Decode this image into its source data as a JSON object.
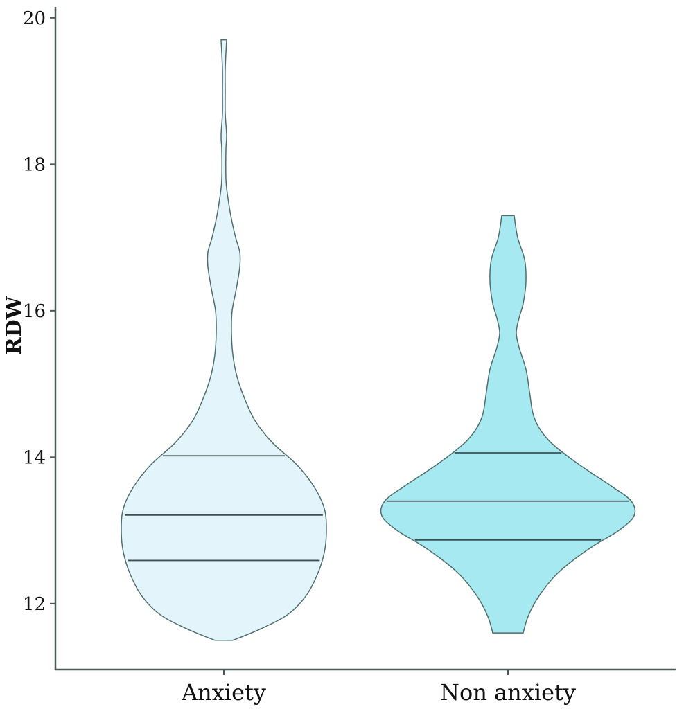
{
  "chart_data": {
    "type": "violin",
    "ylabel": "RDW",
    "xlabel": "",
    "ylim": [
      11.1,
      20.15
    ],
    "yticks": [
      12,
      14,
      16,
      18,
      20
    ],
    "grid": false,
    "categories": [
      "Anxiety",
      "Non anxiety"
    ],
    "series": [
      {
        "category": "Anxiety",
        "fill": "#e3f5fb",
        "min": 11.5,
        "max": 19.7,
        "q1": 12.59,
        "median": 13.21,
        "q3": 14.02,
        "density": [
          [
            11.5,
            13
          ],
          [
            11.65,
            52
          ],
          [
            11.85,
            92
          ],
          [
            12.1,
            118
          ],
          [
            12.4,
            135
          ],
          [
            12.7,
            145
          ],
          [
            13.0,
            148
          ],
          [
            13.3,
            145
          ],
          [
            13.6,
            130
          ],
          [
            13.9,
            105
          ],
          [
            14.2,
            70
          ],
          [
            14.5,
            45
          ],
          [
            14.8,
            30
          ],
          [
            15.1,
            19
          ],
          [
            15.4,
            13
          ],
          [
            15.7,
            11
          ],
          [
            16.0,
            12
          ],
          [
            16.3,
            18
          ],
          [
            16.6,
            23
          ],
          [
            16.8,
            23
          ],
          [
            17.0,
            17
          ],
          [
            17.3,
            10
          ],
          [
            17.6,
            5
          ],
          [
            17.8,
            3
          ],
          [
            18.2,
            3
          ],
          [
            18.4,
            4
          ],
          [
            18.7,
            2
          ],
          [
            19.0,
            2
          ],
          [
            19.3,
            2
          ],
          [
            19.7,
            4
          ]
        ]
      },
      {
        "category": "Non anxiety",
        "fill": "#a6e9f1",
        "min": 11.6,
        "max": 17.3,
        "q1": 12.87,
        "median": 13.4,
        "q3": 14.06,
        "density": [
          [
            11.6,
            22
          ],
          [
            11.8,
            28
          ],
          [
            12.0,
            38
          ],
          [
            12.2,
            52
          ],
          [
            12.4,
            70
          ],
          [
            12.6,
            95
          ],
          [
            12.8,
            125
          ],
          [
            13.0,
            160
          ],
          [
            13.2,
            182
          ],
          [
            13.4,
            178
          ],
          [
            13.6,
            150
          ],
          [
            13.8,
            118
          ],
          [
            14.0,
            88
          ],
          [
            14.2,
            62
          ],
          [
            14.4,
            45
          ],
          [
            14.6,
            36
          ],
          [
            14.9,
            31
          ],
          [
            15.2,
            26
          ],
          [
            15.5,
            16
          ],
          [
            15.7,
            12
          ],
          [
            15.9,
            16
          ],
          [
            16.1,
            22
          ],
          [
            16.4,
            26
          ],
          [
            16.7,
            24
          ],
          [
            17.0,
            14
          ],
          [
            17.3,
            9
          ]
        ]
      }
    ]
  }
}
